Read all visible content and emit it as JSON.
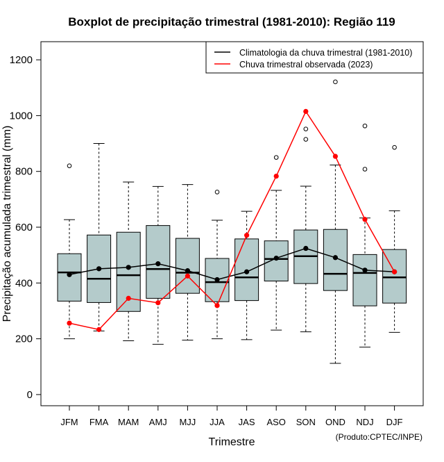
{
  "chart_data": {
    "type": "boxplot",
    "title": "Boxplot de precipitação trimestral (1981-2010): Região 119",
    "xlabel": "Trimestre",
    "ylabel": "Precipitação acumulada trimestral (mm)",
    "credit": "(Produto:CPTEC/INPE)",
    "ylim": [
      -40,
      1265
    ],
    "yticks": [
      0,
      200,
      400,
      600,
      800,
      1000,
      1200
    ],
    "categories": [
      "JFM",
      "FMA",
      "MAM",
      "AMJ",
      "MJJ",
      "JJA",
      "JAS",
      "ASO",
      "SON",
      "OND",
      "NDJ",
      "DJF"
    ],
    "boxes": [
      {
        "min": 200,
        "q1": 335,
        "median": 438,
        "q3": 505,
        "max": 627,
        "outliers": [
          820
        ]
      },
      {
        "min": 228,
        "q1": 330,
        "median": 415,
        "q3": 572,
        "max": 900,
        "outliers": []
      },
      {
        "min": 193,
        "q1": 298,
        "median": 428,
        "q3": 582,
        "max": 762,
        "outliers": []
      },
      {
        "min": 180,
        "q1": 345,
        "median": 450,
        "q3": 606,
        "max": 746,
        "outliers": []
      },
      {
        "min": 195,
        "q1": 363,
        "median": 437,
        "q3": 560,
        "max": 753,
        "outliers": []
      },
      {
        "min": 200,
        "q1": 333,
        "median": 403,
        "q3": 488,
        "max": 625,
        "outliers": [
          726
        ]
      },
      {
        "min": 197,
        "q1": 337,
        "median": 420,
        "q3": 558,
        "max": 657,
        "outliers": []
      },
      {
        "min": 231,
        "q1": 407,
        "median": 486,
        "q3": 551,
        "max": 732,
        "outliers": [
          850
        ]
      },
      {
        "min": 225,
        "q1": 398,
        "median": 496,
        "q3": 590,
        "max": 747,
        "outliers": [
          915,
          952
        ]
      },
      {
        "min": 112,
        "q1": 373,
        "median": 433,
        "q3": 592,
        "max": 823,
        "outliers": [
          1121
        ]
      },
      {
        "min": 170,
        "q1": 318,
        "median": 436,
        "q3": 502,
        "max": 633,
        "outliers": [
          808,
          963
        ]
      },
      {
        "min": 223,
        "q1": 328,
        "median": 420,
        "q3": 520,
        "max": 659,
        "outliers": [
          886
        ]
      }
    ],
    "series": [
      {
        "name": "Climatologia da chuva trimestral (1981-2010)",
        "color": "#000000",
        "values": [
          430,
          451,
          456,
          469,
          444,
          412,
          440,
          489,
          524,
          491,
          446,
          440
        ]
      },
      {
        "name": "Chuva trimestral observada (2023)",
        "color": "#ff0000",
        "values": [
          256,
          233,
          345,
          329,
          425,
          319,
          571,
          783,
          1015,
          854,
          628,
          440
        ]
      }
    ],
    "box_fill": "#b4cbcb",
    "legend_position": "top-right"
  }
}
